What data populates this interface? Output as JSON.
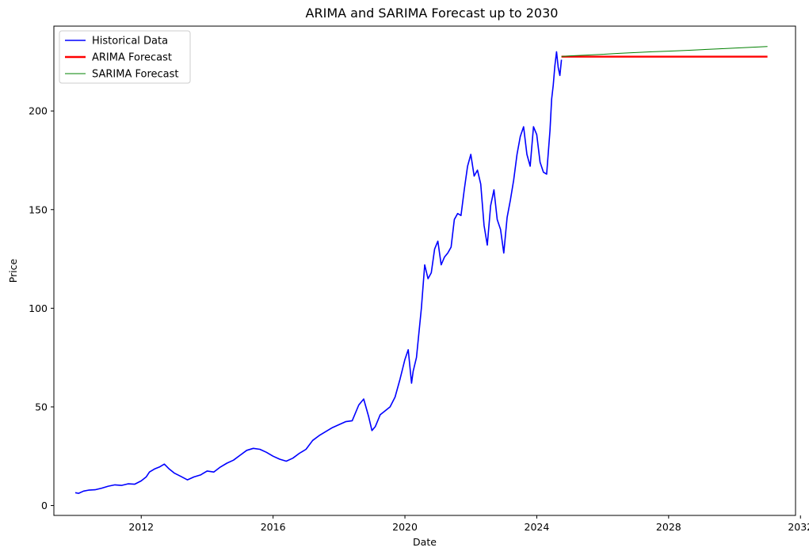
{
  "chart_data": {
    "type": "line",
    "title": "ARIMA and SARIMA Forecast up to 2030",
    "xlabel": "Date",
    "ylabel": "Price",
    "xlim": [
      2009.35,
      2031.85
    ],
    "ylim": [
      -5,
      243
    ],
    "x_ticks": [
      {
        "value": 2012,
        "label": "2012"
      },
      {
        "value": 2016,
        "label": "2016"
      },
      {
        "value": 2020,
        "label": "2020"
      },
      {
        "value": 2024,
        "label": "2024"
      },
      {
        "value": 2028,
        "label": "2028"
      },
      {
        "value": 2032,
        "label": "2032"
      }
    ],
    "y_ticks": [
      {
        "value": 0,
        "label": "0"
      },
      {
        "value": 50,
        "label": "50"
      },
      {
        "value": 100,
        "label": "100"
      },
      {
        "value": 150,
        "label": "150"
      },
      {
        "value": 200,
        "label": "200"
      }
    ],
    "grid": false,
    "legend_position": "top-left",
    "series": [
      {
        "name": "Historical Data",
        "color": "#0000ff",
        "x": [
          2010.0,
          2010.1,
          2010.25,
          2010.4,
          2010.6,
          2010.8,
          2011.0,
          2011.2,
          2011.4,
          2011.6,
          2011.8,
          2012.0,
          2012.15,
          2012.25,
          2012.4,
          2012.55,
          2012.7,
          2012.85,
          2013.0,
          2013.2,
          2013.4,
          2013.6,
          2013.8,
          2014.0,
          2014.2,
          2014.4,
          2014.6,
          2014.8,
          2015.0,
          2015.2,
          2015.4,
          2015.6,
          2015.8,
          2016.0,
          2016.2,
          2016.4,
          2016.6,
          2016.8,
          2017.0,
          2017.2,
          2017.4,
          2017.6,
          2017.8,
          2018.0,
          2018.2,
          2018.4,
          2018.6,
          2018.75,
          2018.9,
          2019.0,
          2019.1,
          2019.25,
          2019.4,
          2019.55,
          2019.7,
          2019.85,
          2020.0,
          2020.1,
          2020.2,
          2020.25,
          2020.35,
          2020.5,
          2020.6,
          2020.7,
          2020.8,
          2020.9,
          2021.0,
          2021.1,
          2021.2,
          2021.3,
          2021.4,
          2021.5,
          2021.6,
          2021.7,
          2021.8,
          2021.9,
          2022.0,
          2022.1,
          2022.2,
          2022.3,
          2022.4,
          2022.5,
          2022.6,
          2022.7,
          2022.8,
          2022.9,
          2023.0,
          2023.1,
          2023.2,
          2023.3,
          2023.4,
          2023.5,
          2023.6,
          2023.7,
          2023.8,
          2023.9,
          2024.0,
          2024.1,
          2024.2,
          2024.3,
          2024.4,
          2024.45,
          2024.5,
          2024.55,
          2024.6,
          2024.65,
          2024.7,
          2024.75
        ],
        "y": [
          6.5,
          6.2,
          7.3,
          7.8,
          8.0,
          8.8,
          9.8,
          10.5,
          10.2,
          11.0,
          10.8,
          12.5,
          14.5,
          17.0,
          18.5,
          19.5,
          21.0,
          18.5,
          16.5,
          14.8,
          13.0,
          14.5,
          15.5,
          17.5,
          17.0,
          19.5,
          21.5,
          23.0,
          25.5,
          28.0,
          29.0,
          28.5,
          27.0,
          25.0,
          23.5,
          22.5,
          24.0,
          26.5,
          28.5,
          33.0,
          35.5,
          37.5,
          39.5,
          41.0,
          42.5,
          43.0,
          51.0,
          54.0,
          45.0,
          38.0,
          40.0,
          46.0,
          48.0,
          50.0,
          55.0,
          64.0,
          74.0,
          79.0,
          62.0,
          68.0,
          75.0,
          100.0,
          122.0,
          115.0,
          118.0,
          130.0,
          134.0,
          122.0,
          126.0,
          128.0,
          131.0,
          145.0,
          148.0,
          147.0,
          160.0,
          172.0,
          178.0,
          167.0,
          170.0,
          163.0,
          142.0,
          132.0,
          152.0,
          160.0,
          145.0,
          140.0,
          128.0,
          146.0,
          155.0,
          165.0,
          178.0,
          187.0,
          192.0,
          178.0,
          172.0,
          192.0,
          188.0,
          174.0,
          169.0,
          168.0,
          190.0,
          206.0,
          213.0,
          223.0,
          230.0,
          222.0,
          218.0,
          226.0
        ]
      },
      {
        "name": "ARIMA Forecast",
        "color": "#ff0000",
        "x": [
          2024.75,
          2031.0
        ],
        "y": [
          227.5,
          227.5
        ]
      },
      {
        "name": "SARIMA Forecast",
        "color": "#008000",
        "x": [
          2024.75,
          2025.0,
          2025.5,
          2026.0,
          2026.5,
          2027.0,
          2027.5,
          2028.0,
          2028.5,
          2029.0,
          2029.5,
          2030.0,
          2030.5,
          2031.0
        ],
        "y": [
          227.6,
          227.9,
          228.3,
          228.7,
          229.2,
          229.6,
          230.0,
          230.3,
          230.7,
          231.1,
          231.5,
          231.9,
          232.3,
          232.7
        ]
      }
    ]
  }
}
